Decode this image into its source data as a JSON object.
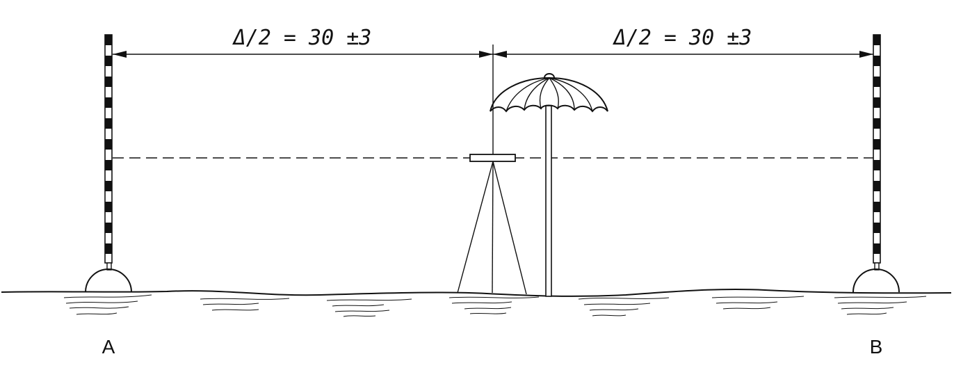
{
  "dimensions": {
    "left_label": "Δ/2 = 30 ±3",
    "right_label": "Δ/2 = 30 ±3"
  },
  "points": {
    "a": "A",
    "b": "B"
  },
  "colors": {
    "ink": "#111111",
    "background": "#ffffff"
  },
  "objects": [
    "ranging-pole-a",
    "ranging-pole-b",
    "level-instrument-tripod",
    "umbrella"
  ]
}
